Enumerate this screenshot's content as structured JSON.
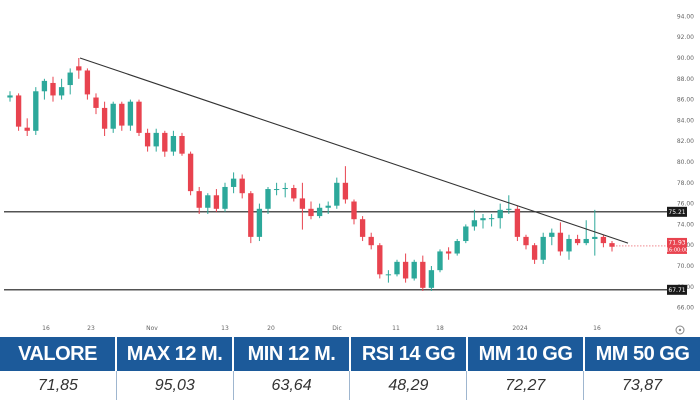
{
  "chart_data": {
    "type": "candlestick",
    "y_ticks": [
      "94.00",
      "92.00",
      "90.00",
      "88.00",
      "86.00",
      "84.00",
      "82.00",
      "80.00",
      "78.00",
      "76.00",
      "74.00",
      "72.00",
      "70.00",
      "68.00",
      "66.00"
    ],
    "x_ticks": [
      "16",
      "23",
      "Nov",
      "13",
      "20",
      "Dic",
      "11",
      "18",
      "2024",
      "16"
    ],
    "ylim": [
      65,
      95
    ],
    "candles": [
      [
        86.2,
        86.8,
        85.8,
        86.4
      ],
      [
        86.4,
        86.6,
        83.0,
        83.4
      ],
      [
        83.3,
        84.2,
        82.5,
        83.0
      ],
      [
        83.0,
        87.2,
        82.6,
        86.8
      ],
      [
        86.8,
        88.0,
        86.0,
        87.8
      ],
      [
        87.6,
        88.2,
        85.8,
        86.4
      ],
      [
        86.4,
        88.0,
        86.0,
        87.2
      ],
      [
        87.4,
        89.0,
        86.5,
        88.6
      ],
      [
        89.2,
        90.0,
        88.0,
        88.8
      ],
      [
        88.8,
        89.0,
        86.0,
        86.5
      ],
      [
        86.2,
        86.6,
        84.6,
        85.2
      ],
      [
        85.2,
        85.8,
        82.5,
        83.2
      ],
      [
        83.2,
        85.8,
        82.8,
        85.6
      ],
      [
        85.6,
        85.8,
        83.0,
        83.5
      ],
      [
        83.5,
        86.0,
        83.0,
        85.8
      ],
      [
        85.8,
        86.0,
        82.5,
        82.8
      ],
      [
        82.8,
        83.2,
        81.0,
        81.5
      ],
      [
        81.5,
        83.2,
        81.0,
        82.8
      ],
      [
        82.8,
        83.0,
        80.5,
        81.0
      ],
      [
        81.0,
        83.0,
        80.6,
        82.5
      ],
      [
        82.5,
        82.8,
        80.6,
        80.8
      ],
      [
        80.8,
        81.0,
        76.8,
        77.2
      ],
      [
        77.2,
        77.6,
        75.0,
        75.6
      ],
      [
        75.6,
        77.0,
        75.0,
        76.8
      ],
      [
        76.8,
        77.4,
        75.2,
        75.5
      ],
      [
        75.5,
        78.0,
        75.2,
        77.6
      ],
      [
        77.6,
        79.0,
        77.0,
        78.4
      ],
      [
        78.4,
        78.8,
        76.5,
        77.0
      ],
      [
        77.0,
        77.2,
        72.2,
        72.8
      ],
      [
        72.8,
        76.0,
        72.4,
        75.5
      ],
      [
        75.5,
        77.6,
        75.0,
        77.4
      ],
      [
        77.4,
        78.0,
        76.8,
        77.4
      ],
      [
        77.4,
        78.0,
        76.6,
        77.5
      ],
      [
        77.5,
        77.8,
        76.2,
        76.5
      ],
      [
        76.5,
        78.0,
        73.5,
        75.5
      ],
      [
        75.5,
        76.2,
        74.5,
        74.8
      ],
      [
        74.8,
        76.0,
        74.6,
        75.6
      ],
      [
        75.6,
        76.2,
        75.0,
        75.8
      ],
      [
        75.8,
        78.5,
        75.5,
        78.0
      ],
      [
        78.0,
        79.6,
        76.0,
        76.4
      ],
      [
        76.2,
        76.4,
        74.0,
        74.5
      ],
      [
        74.5,
        74.8,
        72.4,
        72.8
      ],
      [
        72.8,
        73.2,
        71.6,
        72.0
      ],
      [
        72.0,
        72.2,
        68.8,
        69.2
      ],
      [
        69.2,
        69.6,
        68.4,
        69.2
      ],
      [
        69.2,
        70.6,
        69.0,
        70.4
      ],
      [
        70.4,
        71.2,
        68.4,
        68.8
      ],
      [
        68.8,
        70.6,
        68.6,
        70.4
      ],
      [
        70.4,
        71.0,
        67.6,
        67.9
      ],
      [
        67.9,
        70.0,
        67.6,
        69.6
      ],
      [
        69.6,
        71.6,
        69.4,
        71.4
      ],
      [
        71.4,
        71.8,
        70.6,
        71.2
      ],
      [
        71.2,
        72.6,
        71.0,
        72.4
      ],
      [
        72.4,
        74.0,
        72.2,
        73.8
      ],
      [
        73.8,
        75.4,
        73.4,
        74.4
      ],
      [
        74.4,
        75.0,
        73.6,
        74.6
      ],
      [
        74.6,
        75.0,
        73.8,
        74.6
      ],
      [
        74.6,
        76.0,
        73.6,
        75.4
      ],
      [
        75.4,
        76.8,
        75.0,
        75.5
      ],
      [
        75.5,
        75.8,
        72.4,
        72.8
      ],
      [
        72.8,
        73.0,
        71.6,
        72.0
      ],
      [
        72.0,
        72.2,
        70.2,
        70.6
      ],
      [
        70.6,
        73.2,
        70.2,
        72.8
      ],
      [
        72.8,
        73.6,
        72.0,
        73.2
      ],
      [
        73.2,
        74.2,
        71.0,
        71.4
      ],
      [
        71.4,
        73.0,
        70.6,
        72.6
      ],
      [
        72.6,
        73.0,
        72.0,
        72.2
      ],
      [
        72.2,
        74.4,
        72.0,
        72.6
      ],
      [
        72.6,
        75.4,
        71.0,
        72.8
      ],
      [
        72.8,
        73.0,
        71.8,
        72.2
      ],
      [
        72.2,
        72.4,
        71.4,
        71.85
      ]
    ],
    "horizontal_levels": [
      {
        "value": 75.21,
        "label": "75.21"
      },
      {
        "value": 67.71,
        "label": "67.71"
      }
    ],
    "price_marker": {
      "value": 71.93,
      "label": "71.93",
      "sublabel": "16:00:00"
    },
    "trendline": {
      "from_price": 90.0,
      "to_price": 72.2
    }
  },
  "stats": {
    "headers": [
      "VALORE",
      "MAX 12 M.",
      "MIN 12 M.",
      "RSI 14 GG",
      "MM 10 GG",
      "MM 50 GG"
    ],
    "values": [
      "71,85",
      "95,03",
      "63,64",
      "48,29",
      "72,27",
      "73,87"
    ]
  },
  "colors": {
    "up": "#2ca89a",
    "down": "#e8434f",
    "header_bg": "#1c5a9a",
    "level_label_bg": "#1a1a1a",
    "price_label_bg": "#e8434f"
  },
  "settings_icon": "settings-icon"
}
